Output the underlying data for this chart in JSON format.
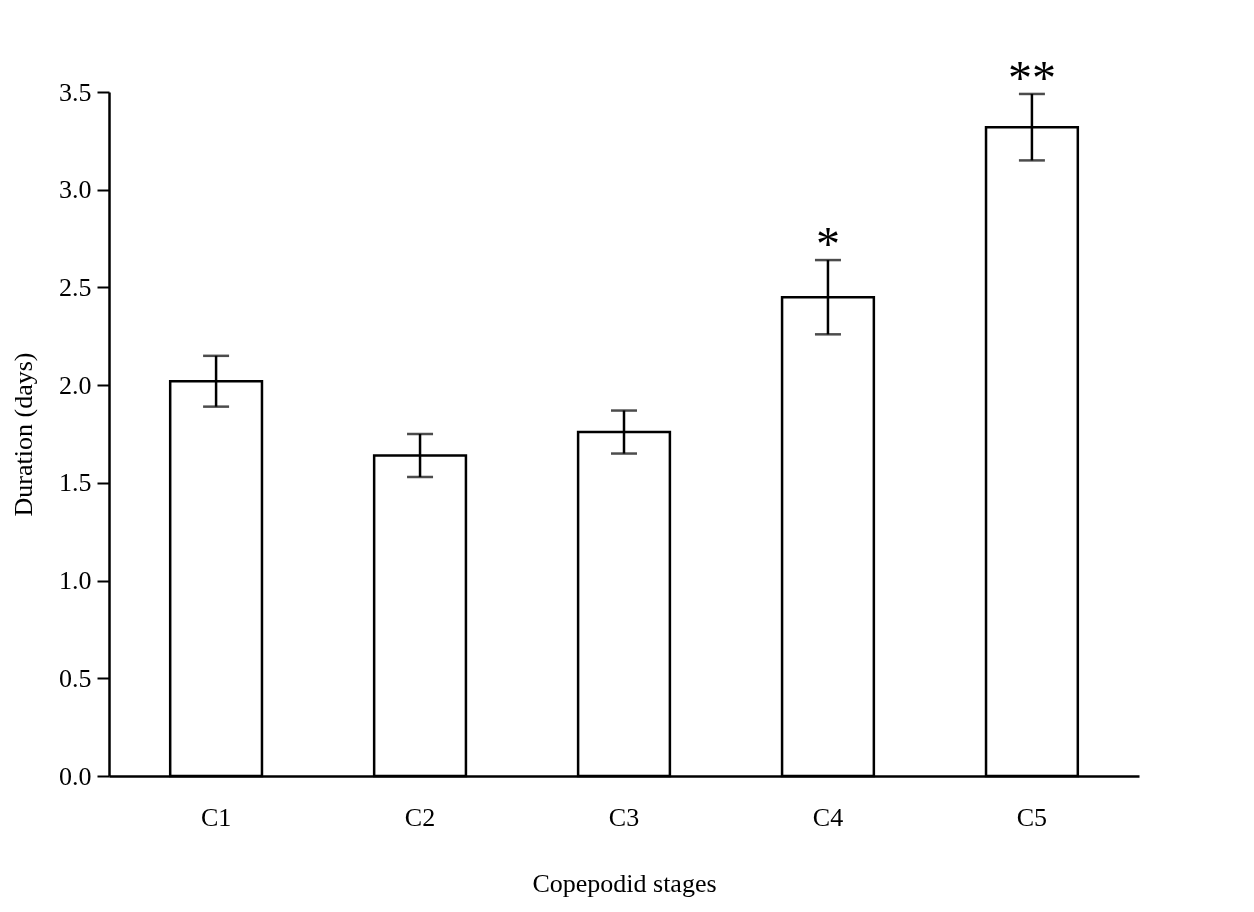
{
  "chart_data": {
    "type": "bar",
    "xlabel": "Copepodid stages",
    "ylabel": "Duration (days)",
    "categories": [
      "C1",
      "C2",
      "C3",
      "C4",
      "C5"
    ],
    "values": [
      2.02,
      1.64,
      1.76,
      2.45,
      3.32
    ],
    "errors": [
      0.13,
      0.11,
      0.11,
      0.19,
      0.17
    ],
    "color": "#ffffff",
    "ylim": [
      0,
      3.5
    ],
    "yticks": [
      {
        "value": 0,
        "label": "0.0"
      },
      {
        "value": 0.5,
        "label": "0.5"
      },
      {
        "value": 1,
        "label": "1.0"
      },
      {
        "value": 1.5,
        "label": "1.5"
      },
      {
        "value": 2,
        "label": "2.0"
      },
      {
        "value": 2.5,
        "label": "2.5"
      },
      {
        "value": 3,
        "label": "3.0"
      },
      {
        "value": 3.5,
        "label": "3.5"
      }
    ],
    "grid": false,
    "annotations": [
      {
        "text": "*",
        "x": "C4",
        "y": 2.64
      },
      {
        "text": "**",
        "x": "C5",
        "y": 3.49
      }
    ]
  }
}
